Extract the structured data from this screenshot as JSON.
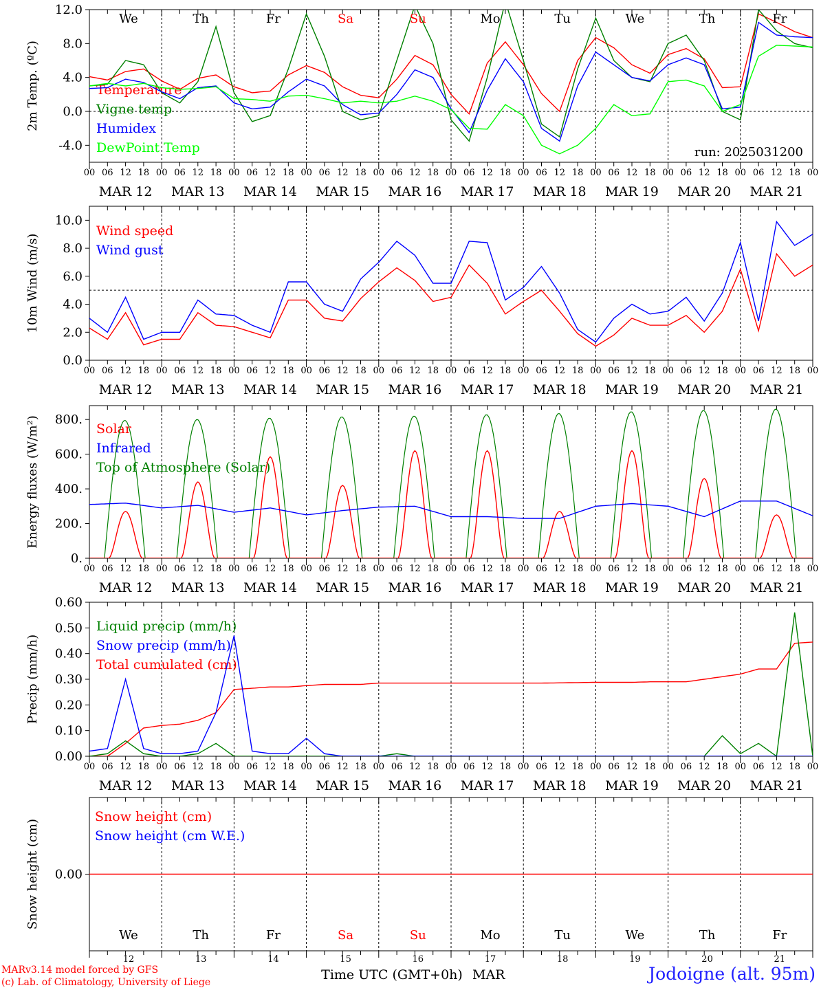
{
  "chart_data": [
    {
      "type": "line",
      "ylabel": "2m Temp. (ºC)",
      "ylim": [
        -6.0,
        12.0
      ],
      "yticks": [
        "-4.0",
        "0.0",
        "4.0",
        "8.0",
        "12.0"
      ],
      "ref_line": 0.0,
      "weekday_labels": [
        "We",
        "Th",
        "Fr",
        "Sa",
        "Su",
        "Mo",
        "Tu",
        "We",
        "Th",
        "Fr"
      ],
      "weekday_colors": [
        "#000000",
        "#000000",
        "#000000",
        "#ff0000",
        "#ff0000",
        "#000000",
        "#000000",
        "#000000",
        "#000000",
        "#000000"
      ],
      "run_label": "run: 2025031200",
      "legend": [
        "Temperature",
        "Vigne temp",
        "Humidex",
        "DewPoint Temp"
      ],
      "series": [
        {
          "name": "Temperature",
          "color": "#ff0000",
          "x": [
            0,
            6,
            12,
            18,
            24,
            30,
            36,
            42,
            48,
            54,
            60,
            66,
            72,
            78,
            84,
            90,
            96,
            102,
            108,
            114,
            120,
            126,
            132,
            138,
            144,
            150,
            156,
            162,
            168,
            174,
            180,
            186,
            192,
            198,
            204,
            210,
            216,
            222,
            228,
            234,
            240
          ],
          "values": [
            4.1,
            3.7,
            4.7,
            5.0,
            3.6,
            2.6,
            3.9,
            4.3,
            2.9,
            2.2,
            2.4,
            4.3,
            5.4,
            4.6,
            2.9,
            1.9,
            1.6,
            3.8,
            6.6,
            5.5,
            2.0,
            -0.3,
            5.7,
            8.2,
            5.5,
            2.1,
            0.0,
            6.0,
            8.7,
            7.5,
            5.5,
            4.5,
            6.7,
            7.4,
            6.2,
            2.8,
            2.9,
            11.5,
            10.5,
            9.4,
            8.7
          ]
        },
        {
          "name": "Vigne temp",
          "color": "#008000",
          "x": [
            0,
            6,
            12,
            18,
            24,
            30,
            36,
            42,
            48,
            54,
            60,
            66,
            72,
            78,
            84,
            90,
            96,
            102,
            108,
            114,
            120,
            126,
            132,
            138,
            144,
            150,
            156,
            162,
            168,
            174,
            180,
            186,
            192,
            198,
            204,
            210,
            216,
            222,
            228,
            234,
            240
          ],
          "values": [
            3.0,
            3.2,
            6.0,
            5.5,
            2.2,
            1.0,
            3.5,
            10.0,
            2.2,
            -1.2,
            -0.5,
            5.0,
            11.5,
            6.5,
            0.0,
            -1.0,
            -0.5,
            6.0,
            12.5,
            8.0,
            -1.0,
            -3.5,
            4.0,
            13.0,
            6.0,
            -1.5,
            -3.0,
            5.0,
            11.0,
            6.0,
            4.0,
            3.5,
            8.0,
            9.0,
            6.0,
            0.0,
            -1.0,
            12.0,
            9.5,
            8.0,
            7.5
          ]
        },
        {
          "name": "Humidex",
          "color": "#0000ff",
          "x": [
            0,
            6,
            12,
            18,
            24,
            30,
            36,
            42,
            48,
            54,
            60,
            66,
            72,
            78,
            84,
            90,
            96,
            102,
            108,
            114,
            120,
            126,
            132,
            138,
            144,
            150,
            156,
            162,
            168,
            174,
            180,
            186,
            192,
            198,
            204,
            210,
            216,
            222,
            228,
            234,
            240
          ],
          "values": [
            2.7,
            2.8,
            3.8,
            3.4,
            2.3,
            1.5,
            2.8,
            3.0,
            1.0,
            0.3,
            0.5,
            2.3,
            3.8,
            3.0,
            0.8,
            -0.4,
            -0.2,
            2.0,
            4.9,
            4.0,
            0.3,
            -2.5,
            2.5,
            6.2,
            3.5,
            -2.0,
            -3.5,
            3.0,
            7.0,
            5.5,
            4.0,
            3.6,
            5.5,
            6.3,
            5.5,
            0.3,
            0.5,
            10.5,
            9.0,
            8.8,
            8.7
          ]
        },
        {
          "name": "DewPoint Temp",
          "color": "#00ff00",
          "x": [
            0,
            6,
            12,
            18,
            24,
            30,
            36,
            42,
            48,
            54,
            60,
            66,
            72,
            78,
            84,
            90,
            96,
            102,
            108,
            114,
            120,
            126,
            132,
            138,
            144,
            150,
            156,
            162,
            168,
            174,
            180,
            186,
            192,
            198,
            204,
            210,
            216,
            222,
            228,
            234,
            240
          ],
          "values": [
            3.0,
            3.3,
            3.0,
            3.3,
            2.8,
            2.6,
            2.7,
            2.9,
            1.5,
            1.4,
            1.2,
            1.8,
            1.9,
            1.5,
            1.0,
            1.2,
            1.0,
            1.2,
            1.8,
            1.2,
            0.2,
            -2.0,
            -2.1,
            0.8,
            -0.5,
            -4.0,
            -5.0,
            -4.0,
            -2.0,
            0.8,
            -0.5,
            -0.3,
            3.5,
            3.7,
            3.0,
            0.0,
            0.8,
            6.5,
            7.8,
            7.7,
            7.6
          ]
        }
      ]
    },
    {
      "type": "line",
      "ylabel": "10m Wind (m/s)",
      "ylim": [
        0.0,
        11.0
      ],
      "yticks": [
        "0.0",
        "2.0",
        "4.0",
        "6.0",
        "8.0",
        "10.0"
      ],
      "ref_line": 5.0,
      "legend": [
        "Wind speed",
        "Wind gust"
      ],
      "series": [
        {
          "name": "Wind speed",
          "color": "#ff0000",
          "x": [
            0,
            6,
            12,
            18,
            24,
            30,
            36,
            42,
            48,
            54,
            60,
            66,
            72,
            78,
            84,
            90,
            96,
            102,
            108,
            114,
            120,
            126,
            132,
            138,
            144,
            150,
            156,
            162,
            168,
            174,
            180,
            186,
            192,
            198,
            204,
            210,
            216,
            222,
            228,
            234,
            240
          ],
          "values": [
            2.3,
            1.5,
            3.4,
            1.1,
            1.5,
            1.5,
            3.4,
            2.5,
            2.4,
            2.0,
            1.6,
            4.3,
            4.3,
            3.0,
            2.8,
            4.4,
            5.6,
            6.6,
            5.7,
            4.2,
            4.5,
            6.8,
            5.5,
            3.3,
            4.2,
            5.0,
            3.5,
            1.9,
            1.0,
            1.8,
            3.0,
            2.5,
            2.5,
            3.2,
            2.0,
            3.5,
            6.5,
            2.1,
            7.6,
            6.0,
            6.8
          ]
        },
        {
          "name": "Wind gust",
          "color": "#0000ff",
          "x": [
            0,
            6,
            12,
            18,
            24,
            30,
            36,
            42,
            48,
            54,
            60,
            66,
            72,
            78,
            84,
            90,
            96,
            102,
            108,
            114,
            120,
            126,
            132,
            138,
            144,
            150,
            156,
            162,
            168,
            174,
            180,
            186,
            192,
            198,
            204,
            210,
            216,
            222,
            228,
            234,
            240
          ],
          "values": [
            3.0,
            2.0,
            4.5,
            1.5,
            2.0,
            2.0,
            4.3,
            3.3,
            3.2,
            2.5,
            2.0,
            5.6,
            5.6,
            4.0,
            3.5,
            5.8,
            7.0,
            8.5,
            7.5,
            5.5,
            5.5,
            8.5,
            8.4,
            4.3,
            5.2,
            6.7,
            4.8,
            2.2,
            1.3,
            3.0,
            4.0,
            3.3,
            3.5,
            4.5,
            2.8,
            4.8,
            8.4,
            2.8,
            9.9,
            8.2,
            9.0
          ]
        }
      ]
    },
    {
      "type": "line",
      "ylabel": "Energy fluxes (W/m²)",
      "ylim": [
        0,
        880
      ],
      "yticks": [
        "0.",
        "200.",
        "400.",
        "600.",
        "800."
      ],
      "legend": [
        "Solar",
        "Infrared",
        "Top of Atmosphere (Solar)"
      ],
      "toa_peaks": [
        795,
        800,
        808,
        815,
        820,
        828,
        835,
        845,
        852,
        860
      ],
      "solar_peaks": [
        270,
        440,
        585,
        420,
        620,
        620,
        270,
        620,
        460,
        250
      ],
      "infrared": {
        "name": "Infrared",
        "color": "#0000ff",
        "x": [
          0,
          12,
          24,
          36,
          48,
          60,
          72,
          84,
          96,
          108,
          120,
          132,
          144,
          156,
          168,
          180,
          192,
          204,
          216,
          228,
          240
        ],
        "values": [
          310,
          318,
          290,
          305,
          265,
          290,
          250,
          275,
          295,
          300,
          240,
          240,
          230,
          230,
          300,
          315,
          300,
          240,
          330,
          330,
          245
        ]
      }
    },
    {
      "type": "line",
      "ylabel": "Precip (mm/h)",
      "ylim": [
        0.0,
        0.6
      ],
      "yticks": [
        "0.00",
        "0.10",
        "0.20",
        "0.30",
        "0.40",
        "0.50",
        "0.60"
      ],
      "legend": [
        "Liquid precip (mm/h)",
        "Snow precip (mm/h)",
        "Total cumulated (cm)"
      ],
      "series": [
        {
          "name": "Total cumulated (cm)",
          "color": "#ff0000",
          "x": [
            0,
            6,
            12,
            18,
            24,
            30,
            36,
            42,
            48,
            54,
            60,
            66,
            72,
            78,
            84,
            90,
            96,
            102,
            108,
            114,
            120,
            126,
            132,
            138,
            144,
            150,
            156,
            162,
            168,
            174,
            180,
            186,
            192,
            198,
            204,
            210,
            216,
            222,
            228,
            234,
            240
          ],
          "values": [
            0.0,
            0.0,
            0.05,
            0.11,
            0.12,
            0.125,
            0.14,
            0.17,
            0.26,
            0.265,
            0.27,
            0.27,
            0.275,
            0.28,
            0.28,
            0.28,
            0.285,
            0.285,
            0.285,
            0.285,
            0.285,
            0.285,
            0.285,
            0.285,
            0.285,
            0.285,
            0.286,
            0.287,
            0.288,
            0.288,
            0.288,
            0.29,
            0.29,
            0.29,
            0.3,
            0.31,
            0.32,
            0.34,
            0.34,
            0.44,
            0.445
          ]
        },
        {
          "name": "Liquid precip (mm/h)",
          "color": "#008000",
          "x": [
            0,
            6,
            12,
            18,
            24,
            30,
            36,
            42,
            48,
            54,
            60,
            66,
            72,
            78,
            84,
            90,
            96,
            102,
            108,
            114,
            120,
            126,
            132,
            138,
            144,
            150,
            156,
            162,
            168,
            174,
            180,
            186,
            192,
            198,
            204,
            210,
            216,
            222,
            228,
            234,
            240
          ],
          "values": [
            0.0,
            0.01,
            0.06,
            0.01,
            0.0,
            0.0,
            0.01,
            0.05,
            0.0,
            0.0,
            0.0,
            0.0,
            0.0,
            0.0,
            0.0,
            0.0,
            0.0,
            0.01,
            0.0,
            0.0,
            0.0,
            0.0,
            0.0,
            0.0,
            0.0,
            0.0,
            0.0,
            0.0,
            0.0,
            0.0,
            0.0,
            0.0,
            0.0,
            0.0,
            0.0,
            0.08,
            0.01,
            0.05,
            0.0,
            0.56,
            0.0
          ]
        },
        {
          "name": "Snow precip (mm/h)",
          "color": "#0000ff",
          "x": [
            0,
            6,
            12,
            18,
            24,
            30,
            36,
            42,
            48,
            54,
            60,
            66,
            72,
            78,
            84,
            90,
            96,
            102,
            108,
            114,
            120,
            126,
            132,
            138,
            144,
            150,
            156,
            162,
            168,
            174,
            180,
            186,
            192,
            198,
            204,
            210,
            216,
            222,
            228,
            234,
            240
          ],
          "values": [
            0.02,
            0.03,
            0.3,
            0.03,
            0.01,
            0.01,
            0.02,
            0.17,
            0.47,
            0.02,
            0.01,
            0.01,
            0.07,
            0.01,
            0.0,
            0.0,
            0.0,
            0.0,
            0.0,
            0.0,
            0.0,
            0.0,
            0.0,
            0.0,
            0.0,
            0.0,
            0.0,
            0.0,
            0.0,
            0.0,
            0.0,
            0.0,
            0.0,
            0.0,
            0.0,
            0.0,
            0.0,
            0.0,
            0.0,
            0.0,
            0.0
          ]
        }
      ]
    },
    {
      "type": "line",
      "ylabel": "Snow height (cm)",
      "yticks": [
        "0.00"
      ],
      "legend": [
        "Snow height (cm)",
        "Snow height (cm W.E.)"
      ],
      "series": [
        {
          "name": "Snow height (cm)",
          "color": "#ff0000",
          "x": [
            0,
            240
          ],
          "values": [
            0.0,
            0.0
          ]
        }
      ],
      "weekday_labels": [
        "We",
        "Th",
        "Fr",
        "Sa",
        "Su",
        "Mo",
        "Tu",
        "We",
        "Th",
        "Fr"
      ],
      "weekday_colors": [
        "#000000",
        "#000000",
        "#000000",
        "#ff0000",
        "#ff0000",
        "#000000",
        "#000000",
        "#000000",
        "#000000",
        "#000000"
      ],
      "day_numbers": [
        "12",
        "13",
        "14",
        "15",
        "16",
        "17",
        "18",
        "19",
        "20",
        "21"
      ],
      "xlabel": "Time UTC (GMT+0h)",
      "month_label": "MAR"
    }
  ],
  "x_axis": {
    "hour_labels": [
      "00",
      "06",
      "12",
      "18"
    ],
    "end_label": "00",
    "date_labels": [
      "MAR 12",
      "MAR 13",
      "MAR 14",
      "MAR 15",
      "MAR 16",
      "MAR 17",
      "MAR 18",
      "MAR 19",
      "MAR 20",
      "MAR 21"
    ]
  },
  "footer": {
    "model_line": "MARv3.14 model forced by GFS",
    "credit_line": "(c) Lab. of Climatology, University of Liege",
    "station": "Jodoigne (alt. 95m)"
  }
}
